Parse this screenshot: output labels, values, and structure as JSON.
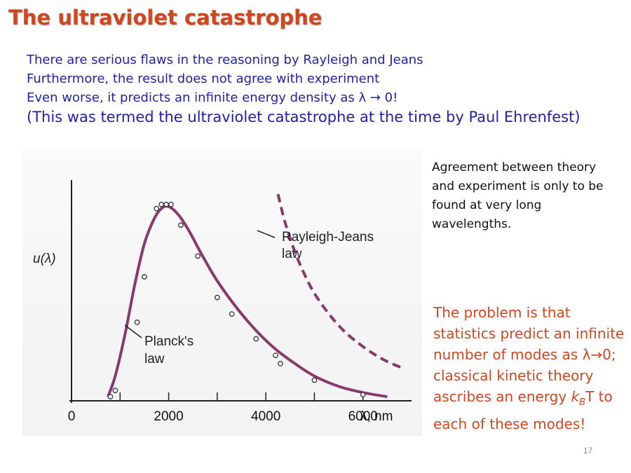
{
  "slide": {
    "title": "The ultraviolet catastrophe",
    "page_number": "17"
  },
  "bullets": {
    "line1": "There are serious flaws in the reasoning by Rayleigh and Jeans",
    "line2": "Furthermore, the result does not agree with experiment",
    "line3": "Even worse, it predicts an infinite energy density as λ → 0!",
    "line4": "(This was termed the ultraviolet catastrophe at the time by Paul Ehrenfest)"
  },
  "side_notes": {
    "agreement": "Agreement between theory and experiment is only to be found at very long wavelengths.",
    "problem_part1": "The problem is that statistics predict an infinite number of modes as λ→0; classical kinetic theory ascribes an energy ",
    "problem_k": "k",
    "problem_sub": "B",
    "problem_part2": "T to each of these modes!"
  },
  "colors": {
    "title": "#d2461e",
    "bullets": "#1f1fa8",
    "planck_curve": "#8a3a6a",
    "rj_curve": "#8a3a6a",
    "problem_text": "#d2461e"
  },
  "chart_data": {
    "type": "line",
    "title": "",
    "ylabel": "u(λ)",
    "xlabel": "λ, nm",
    "xlim": [
      0,
      7000
    ],
    "x_ticks": [
      0,
      2000,
      4000,
      6000
    ],
    "x_tick_labels": [
      "0",
      "2000",
      "4000",
      "6000"
    ],
    "grid": false,
    "annotations": [
      "Rayleigh-Jeans law",
      "Planck's law"
    ],
    "series": [
      {
        "name": "Planck's law",
        "style": "solid",
        "x": [
          750,
          900,
          1100,
          1300,
          1500,
          1700,
          1850,
          2000,
          2200,
          2400,
          2700,
          3000,
          3400,
          3800,
          4200,
          4600,
          5000,
          5500,
          6000,
          6500
        ],
        "y": [
          0.02,
          0.12,
          0.32,
          0.56,
          0.76,
          0.88,
          0.93,
          0.94,
          0.9,
          0.83,
          0.7,
          0.58,
          0.45,
          0.34,
          0.25,
          0.18,
          0.12,
          0.07,
          0.04,
          0.02
        ]
      },
      {
        "name": "Rayleigh-Jeans law",
        "style": "dashed",
        "x": [
          4250,
          4400,
          4600,
          4800,
          5000,
          5300,
          5600,
          5900,
          6200,
          6500,
          6800
        ],
        "y": [
          1.0,
          0.86,
          0.72,
          0.61,
          0.52,
          0.42,
          0.34,
          0.28,
          0.23,
          0.19,
          0.16
        ]
      },
      {
        "name": "experiment",
        "style": "markers",
        "x": [
          800,
          900,
          1350,
          1500,
          1750,
          1850,
          1950,
          2050,
          2250,
          2600,
          3000,
          3300,
          3800,
          4200,
          4300,
          5000,
          6000
        ],
        "y": [
          0.02,
          0.05,
          0.38,
          0.6,
          0.93,
          0.95,
          0.95,
          0.95,
          0.85,
          0.7,
          0.5,
          0.42,
          0.3,
          0.22,
          0.18,
          0.1,
          0.03
        ]
      }
    ]
  }
}
